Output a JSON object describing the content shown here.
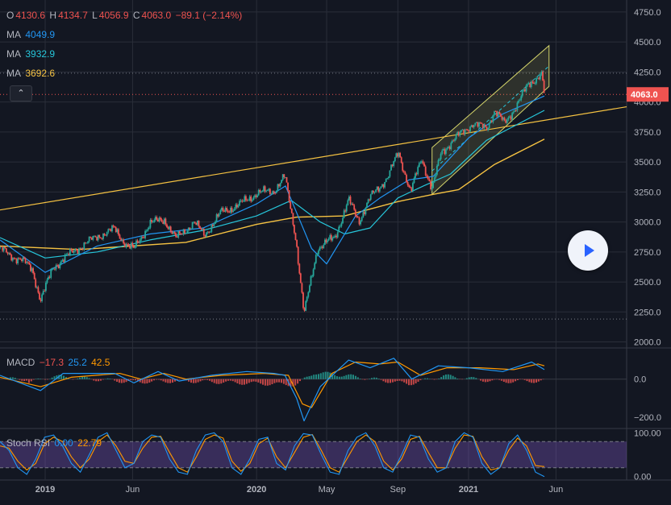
{
  "ohlc": {
    "o_label": "O",
    "o": "4130.6",
    "h_label": "H",
    "h": "4134.7",
    "l_label": "L",
    "l": "4056.9",
    "c_label": "C",
    "c": "4063.0",
    "change": "−89.1 (−2.14%)"
  },
  "ma_legend": [
    {
      "label": "MA",
      "value": "4049.9",
      "color": "#2196f3"
    },
    {
      "label": "MA",
      "value": "3932.9",
      "color": "#26c6da"
    },
    {
      "label": "MA",
      "value": "3692.6",
      "color": "#f5c242"
    }
  ],
  "price_badge": "4063.0",
  "macd_legend": {
    "label": "MACD",
    "v1": "−17.3",
    "v2": "25.2",
    "v3": "42.5"
  },
  "rsi_legend": {
    "label": "Stoch RSI",
    "v1": "0.00",
    "v2": "22.79"
  },
  "colors": {
    "background": "#131722",
    "grid": "#2a2e39",
    "up": "#26a69a",
    "down": "#ef5350",
    "ma_fast": "#2196f3",
    "ma_mid": "#26c6da",
    "ma_slow": "#f5c242",
    "trendline": "#f5c242",
    "channel": "#d4d46a",
    "macd": "#2196f3",
    "signal": "#ff9800",
    "rsi_k": "#2196f3",
    "rsi_d": "#ff9800",
    "rsi_band": "#7e57c2"
  },
  "icons": {
    "collapse": "chevron-up-icon",
    "play": "play-icon"
  },
  "chart_data": [
    {
      "type": "candlestick",
      "title": "",
      "ylim": [
        1950,
        4850
      ],
      "grid": true,
      "y_ticks": [
        "4750.0",
        "4500.0",
        "4250.0",
        "4000.0",
        "3750.0",
        "3500.0",
        "3250.0",
        "3000.0",
        "2750.0",
        "2500.0",
        "2250.0",
        "2000.0"
      ],
      "y_tick_values": [
        4750,
        4500,
        4250,
        4000,
        3750,
        3500,
        3250,
        3000,
        2750,
        2500,
        2250,
        2000
      ],
      "x_labels": [
        {
          "label": "2019",
          "date": "2019-01-01"
        },
        {
          "label": "Jun",
          "date": "2019-06-01"
        },
        {
          "label": "2020",
          "date": "2020-01-01"
        },
        {
          "label": "May",
          "date": "2020-05-01"
        },
        {
          "label": "Sep",
          "date": "2020-09-01"
        },
        {
          "label": "2021",
          "date": "2021-01-01"
        },
        {
          "label": "Jun",
          "date": "2021-06-01"
        }
      ],
      "x_range": [
        "2018-10-15",
        "2021-10-01"
      ],
      "close_series": {
        "dates": [
          "2018-10-15",
          "2018-11-01",
          "2018-11-20",
          "2018-12-10",
          "2018-12-24",
          "2019-01-15",
          "2019-02-01",
          "2019-03-01",
          "2019-04-01",
          "2019-05-01",
          "2019-05-20",
          "2019-06-03",
          "2019-07-01",
          "2019-07-26",
          "2019-08-15",
          "2019-09-15",
          "2019-10-03",
          "2019-11-01",
          "2019-12-01",
          "2020-01-02",
          "2020-01-31",
          "2020-02-19",
          "2020-03-09",
          "2020-03-23",
          "2020-04-15",
          "2020-05-15",
          "2020-06-08",
          "2020-06-26",
          "2020-07-15",
          "2020-08-15",
          "2020-09-02",
          "2020-09-23",
          "2020-10-12",
          "2020-10-30",
          "2020-11-15",
          "2020-12-10",
          "2021-01-08",
          "2021-02-01",
          "2021-02-15",
          "2021-03-04",
          "2021-03-25",
          "2021-04-15",
          "2021-05-07",
          "2021-05-12"
        ],
        "close": [
          2780,
          2720,
          2690,
          2600,
          2350,
          2620,
          2690,
          2790,
          2880,
          2940,
          2820,
          2770,
          2990,
          3020,
          2860,
          3000,
          2890,
          3080,
          3140,
          3240,
          3260,
          3380,
          2860,
          2230,
          2780,
          2870,
          3180,
          3010,
          3200,
          3380,
          3580,
          3250,
          3530,
          3270,
          3580,
          3700,
          3820,
          3780,
          3930,
          3820,
          3970,
          4150,
          4230,
          4063
        ]
      },
      "ma_fast": {
        "name": "MA",
        "value": 4049.9,
        "dates": [
          "2018-10-15",
          "2019-01-01",
          "2019-04-01",
          "2019-07-01",
          "2019-10-01",
          "2020-01-01",
          "2020-02-20",
          "2020-04-05",
          "2020-05-01",
          "2020-06-20",
          "2020-08-01",
          "2020-09-20",
          "2020-11-01",
          "2021-01-01",
          "2021-03-01",
          "2021-05-12"
        ],
        "values": [
          2850,
          2580,
          2800,
          2900,
          2950,
          3150,
          3300,
          2780,
          2650,
          3050,
          3200,
          3350,
          3380,
          3700,
          3900,
          4050
        ]
      },
      "ma_mid": {
        "name": "MA",
        "value": 3932.9,
        "dates": [
          "2018-10-15",
          "2019-01-01",
          "2019-04-01",
          "2019-07-01",
          "2019-10-01",
          "2020-01-01",
          "2020-03-01",
          "2020-04-20",
          "2020-06-01",
          "2020-07-15",
          "2020-09-01",
          "2020-10-15",
          "2020-12-01",
          "2021-02-01",
          "2021-05-12"
        ],
        "values": [
          2870,
          2700,
          2750,
          2850,
          2930,
          3050,
          3180,
          3000,
          2900,
          2950,
          3200,
          3300,
          3400,
          3680,
          3930
        ]
      },
      "ma_slow": {
        "name": "MA",
        "value": 3692.6,
        "dates": [
          "2018-10-15",
          "2019-03-01",
          "2019-09-01",
          "2020-01-01",
          "2020-03-10",
          "2020-06-01",
          "2020-09-01",
          "2020-11-01",
          "2020-12-15",
          "2021-02-15",
          "2021-05-12"
        ],
        "values": [
          2800,
          2770,
          2830,
          2980,
          3040,
          3050,
          3170,
          3230,
          3270,
          3480,
          3690
        ]
      },
      "trendline": {
        "dates": [
          "2018-10-15",
          "2021-10-01"
        ],
        "values": [
          3100,
          3960
        ]
      },
      "channel_upper": {
        "dates": [
          "2020-10-30",
          "2021-05-20"
        ],
        "values": [
          3620,
          4470
        ]
      },
      "channel_lower": {
        "dates": [
          "2020-10-30",
          "2021-05-20"
        ],
        "values": [
          3230,
          4130
        ]
      },
      "last_price_line": 4063.0,
      "low_line": 2191.0
    },
    {
      "type": "line",
      "title": "MACD",
      "ylim": [
        -260,
        160
      ],
      "y_ticks": [
        "0.0",
        "−200.0"
      ],
      "y_tick_values": [
        0,
        -200
      ],
      "macd": {
        "dates": [
          "2018-10-15",
          "2018-12-24",
          "2019-02-01",
          "2019-05-01",
          "2019-06-03",
          "2019-07-15",
          "2019-08-20",
          "2019-10-15",
          "2019-12-15",
          "2020-01-31",
          "2020-02-19",
          "2020-03-10",
          "2020-03-23",
          "2020-04-20",
          "2020-06-08",
          "2020-07-15",
          "2020-08-25",
          "2020-09-25",
          "2020-11-10",
          "2021-01-01",
          "2021-03-01",
          "2021-04-20",
          "2021-05-12"
        ],
        "values": [
          20,
          -60,
          30,
          30,
          -20,
          40,
          -10,
          20,
          40,
          30,
          20,
          -100,
          -220,
          -40,
          100,
          60,
          110,
          0,
          70,
          60,
          40,
          90,
          50
        ]
      },
      "signal": {
        "dates": [
          "2018-10-15",
          "2018-12-24",
          "2019-02-15",
          "2019-05-10",
          "2019-06-15",
          "2019-07-25",
          "2019-09-01",
          "2019-11-01",
          "2020-01-15",
          "2020-02-25",
          "2020-03-20",
          "2020-04-05",
          "2020-05-10",
          "2020-06-20",
          "2020-08-01",
          "2020-09-01",
          "2020-10-10",
          "2020-11-25",
          "2021-01-20",
          "2021-03-20",
          "2021-05-01",
          "2021-05-12"
        ],
        "values": [
          10,
          -40,
          10,
          30,
          0,
          30,
          0,
          20,
          30,
          20,
          -130,
          -150,
          30,
          90,
          80,
          90,
          20,
          60,
          60,
          50,
          80,
          70
        ]
      },
      "histogram": {
        "dates": [
          "2018-12-01",
          "2019-01-15",
          "2019-06-01",
          "2019-09-01",
          "2020-03-10",
          "2020-04-10",
          "2020-06-01",
          "2020-09-20",
          "2020-11-20",
          "2021-02-20",
          "2021-05-10"
        ],
        "values": [
          -40,
          30,
          -30,
          -20,
          -60,
          70,
          40,
          -50,
          35,
          -25,
          -20
        ]
      }
    },
    {
      "type": "line",
      "title": "Stoch RSI",
      "ylim": [
        -8,
        108
      ],
      "y_ticks": [
        "100.00",
        "0.00"
      ],
      "y_tick_values": [
        100,
        0
      ],
      "band": [
        20,
        80
      ],
      "k": {
        "values": [
          80,
          60,
          20,
          5,
          40,
          90,
          95,
          70,
          30,
          10,
          50,
          90,
          100,
          60,
          20,
          30,
          80,
          95,
          90,
          40,
          10,
          5,
          60,
          95,
          100,
          80,
          20,
          5,
          40,
          85,
          90,
          30,
          15,
          70,
          98,
          95,
          50,
          10,
          5,
          60,
          90,
          100,
          70,
          20,
          10,
          50,
          95,
          90,
          40,
          10,
          20,
          80,
          100,
          90,
          30,
          5,
          20,
          75,
          95,
          60,
          10,
          0
        ]
      },
      "d": {
        "values": [
          70,
          65,
          35,
          15,
          30,
          75,
          90,
          80,
          45,
          20,
          40,
          80,
          95,
          70,
          35,
          30,
          65,
          90,
          92,
          55,
          20,
          10,
          45,
          85,
          95,
          88,
          35,
          12,
          30,
          75,
          88,
          45,
          20,
          55,
          90,
          96,
          60,
          20,
          10,
          45,
          80,
          95,
          80,
          35,
          15,
          40,
          85,
          92,
          55,
          20,
          20,
          65,
          95,
          92,
          45,
          15,
          20,
          60,
          88,
          70,
          25,
          22.79
        ]
      }
    }
  ]
}
